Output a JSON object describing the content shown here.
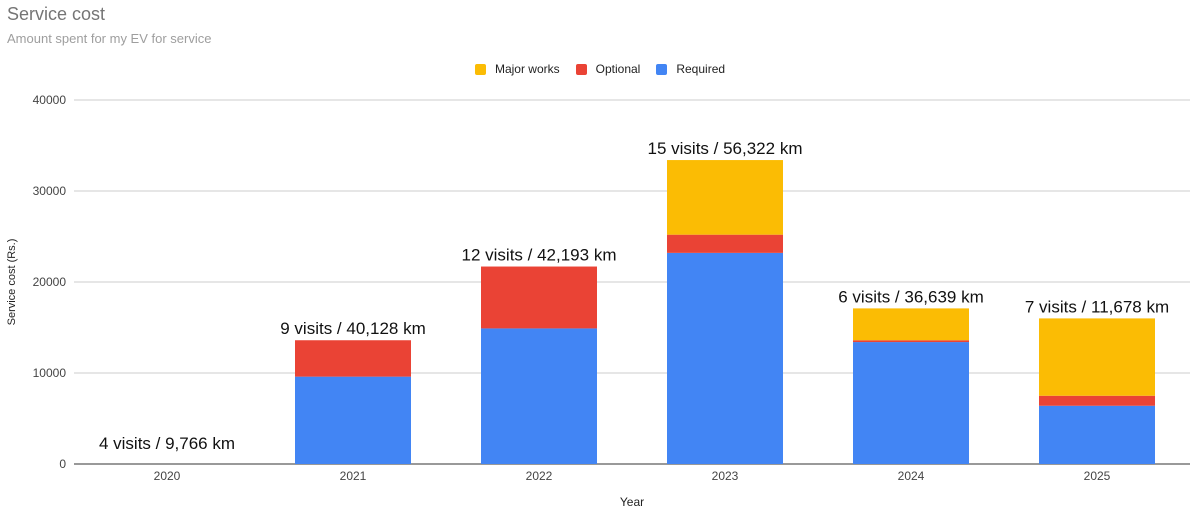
{
  "chart_data": {
    "type": "bar",
    "stacked": true,
    "title": "Service cost",
    "subtitle": "Amount spent for my EV for service",
    "xlabel": "Year",
    "ylabel": "Service cost (Rs.)",
    "ylim": [
      0,
      40000
    ],
    "yticks": [
      "0",
      "10000",
      "20000",
      "30000",
      "40000"
    ],
    "grid": true,
    "legend_position": "top",
    "categories": [
      "2020",
      "2021",
      "2022",
      "2023",
      "2024",
      "2025"
    ],
    "series": [
      {
        "name": "Required",
        "color": "#4285f4",
        "values": [
          0,
          9600,
          14900,
          23200,
          13400,
          6400
        ]
      },
      {
        "name": "Optional",
        "color": "#ea4335",
        "values": [
          0,
          4000,
          6800,
          2000,
          200,
          1100
        ]
      },
      {
        "name": "Major works",
        "color": "#fbbc04",
        "values": [
          0,
          0,
          0,
          8200,
          3500,
          8500
        ]
      }
    ],
    "annotations": [
      "4 visits / 9,766 km",
      "9 visits / 40,128 km",
      "12 visits / 42,193 km",
      "15 visits / 56,322 km",
      "6 visits / 36,639 km",
      "7 visits / 11,678 km"
    ],
    "legend_order": [
      "Major works",
      "Optional",
      "Required"
    ]
  }
}
